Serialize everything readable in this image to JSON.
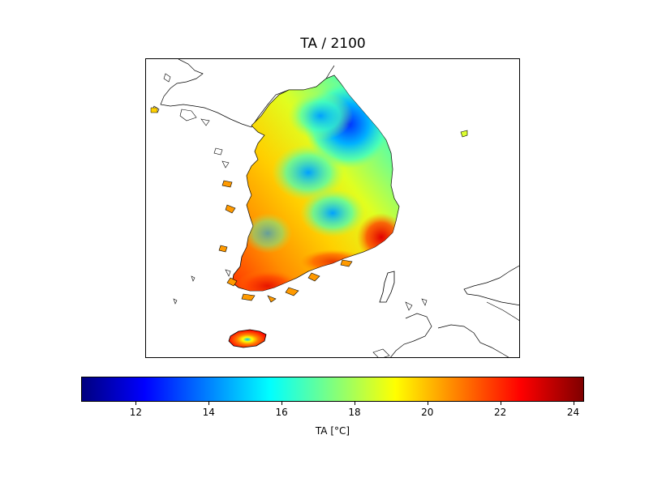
{
  "title": "TA / 2100",
  "map": {
    "region": "South Korea",
    "variable": "TA",
    "year": "2100",
    "units": "°C",
    "colormap": "jet",
    "features": [
      "south-korea-mainland",
      "jeju-island",
      "ulleung-island",
      "north-korea-coastline",
      "japan-coastline",
      "tsushima-island"
    ],
    "colors": {
      "land_outline": "#000000",
      "background": "#ffffff"
    }
  },
  "colorbar": {
    "label": "TA [$^\\circ$C]",
    "label_display": "TA [°C]",
    "min": 10.5,
    "max": 24.3,
    "ticks": [
      12,
      14,
      16,
      18,
      20,
      22,
      24
    ],
    "tick_labels": [
      "12",
      "14",
      "16",
      "18",
      "20",
      "22",
      "24"
    ],
    "colors": [
      "#00007f",
      "#0000ff",
      "#007fff",
      "#00ffff",
      "#7fff7f",
      "#ffff00",
      "#ff7f00",
      "#ff0000",
      "#7f0000"
    ]
  }
}
